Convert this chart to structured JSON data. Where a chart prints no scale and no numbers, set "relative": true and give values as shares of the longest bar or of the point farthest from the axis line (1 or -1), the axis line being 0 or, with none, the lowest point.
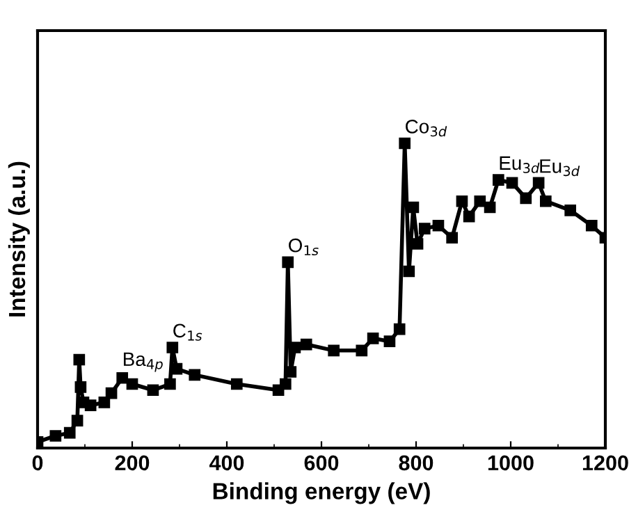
{
  "chart_data": {
    "type": "line",
    "xlabel": "Binding energy (eV)",
    "ylabel": "Intensity (a.u.)",
    "relative": true,
    "xlim": [
      0,
      1200
    ],
    "xticks": [
      0,
      200,
      400,
      600,
      800,
      1000,
      1200
    ],
    "marker": "square",
    "line_style": "solid",
    "series": [
      {
        "color": "#000000",
        "x": [
          0,
          38,
          68,
          84,
          88,
          91,
          97,
          112,
          141,
          156,
          179,
          200,
          244,
          280,
          285,
          294,
          332,
          421,
          509,
          524,
          529,
          535,
          544,
          568,
          626,
          685,
          709,
          744,
          765,
          776,
          785,
          794,
          803,
          818,
          847,
          876,
          897,
          912,
          935,
          956,
          974,
          1003,
          1032,
          1059,
          1074,
          1126,
          1171,
          1200
        ],
        "values": [
          0.02,
          0.04,
          0.05,
          0.09,
          0.29,
          0.2,
          0.15,
          0.14,
          0.15,
          0.18,
          0.23,
          0.21,
          0.19,
          0.21,
          0.33,
          0.26,
          0.24,
          0.21,
          0.19,
          0.21,
          0.61,
          0.25,
          0.33,
          0.34,
          0.32,
          0.32,
          0.36,
          0.35,
          0.39,
          1.0,
          0.58,
          0.79,
          0.67,
          0.72,
          0.73,
          0.69,
          0.81,
          0.76,
          0.81,
          0.79,
          0.88,
          0.87,
          0.82,
          0.87,
          0.81,
          0.78,
          0.73,
          0.69
        ]
      }
    ],
    "annotations": [
      {
        "text": "Ba$_{4p}$",
        "x": 179,
        "y": 0.23
      },
      {
        "text": "C$_{1s}$",
        "x": 285,
        "y": 0.33
      },
      {
        "text": "O$_{1s}$",
        "x": 529,
        "y": 0.61
      },
      {
        "text": "Co$_{3d}$",
        "x": 776,
        "y": 1.0
      },
      {
        "text": "Eu$_{3d}$",
        "x": 974,
        "y": 0.88
      },
      {
        "text": "Eu$_{3d}$",
        "x": 1059,
        "y": 0.87
      }
    ]
  }
}
